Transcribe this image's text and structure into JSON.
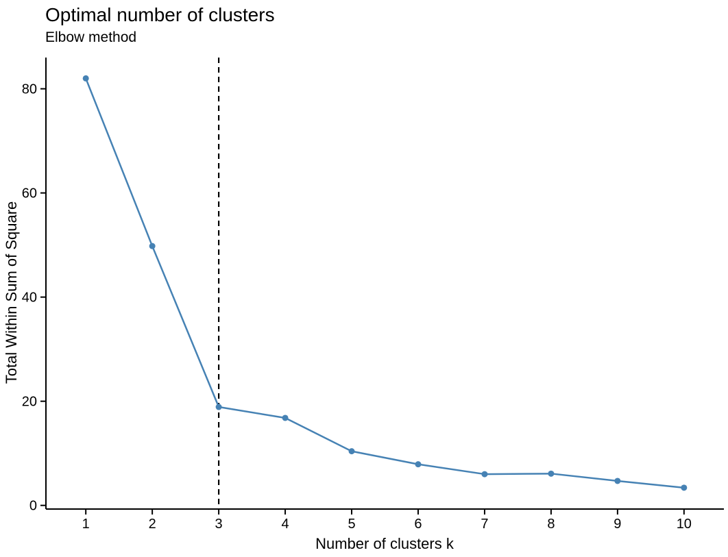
{
  "chart_data": {
    "type": "line",
    "title": "Optimal number of clusters",
    "subtitle": "Elbow method",
    "xlabel": "Number of clusters k",
    "ylabel": "Total Within Sum of Square",
    "x": [
      1,
      2,
      3,
      4,
      5,
      6,
      7,
      8,
      9,
      10
    ],
    "series": [
      {
        "name": "Total Within Sum of Square",
        "values": [
          82,
          49.8,
          18.9,
          16.8,
          10.4,
          7.9,
          6.0,
          6.1,
          4.7,
          3.4
        ]
      }
    ],
    "x_ticks": [
      "1",
      "2",
      "3",
      "4",
      "5",
      "6",
      "7",
      "8",
      "9",
      "10"
    ],
    "y_ticks": [
      "0",
      "20",
      "40",
      "60",
      "80"
    ],
    "y_tick_values": [
      0,
      20,
      40,
      60,
      80
    ],
    "xlim": [
      0.4,
      10.6
    ],
    "ylim": [
      -0.7,
      86
    ],
    "grid": false,
    "legend": "none",
    "annotations": {
      "elbow_vline_x": 3,
      "vline_style": "dashed"
    },
    "colors": {
      "line": "#4682B4",
      "point": "#4682B4",
      "vline": "#000000",
      "axis": "#000000",
      "text": "#000000"
    }
  }
}
